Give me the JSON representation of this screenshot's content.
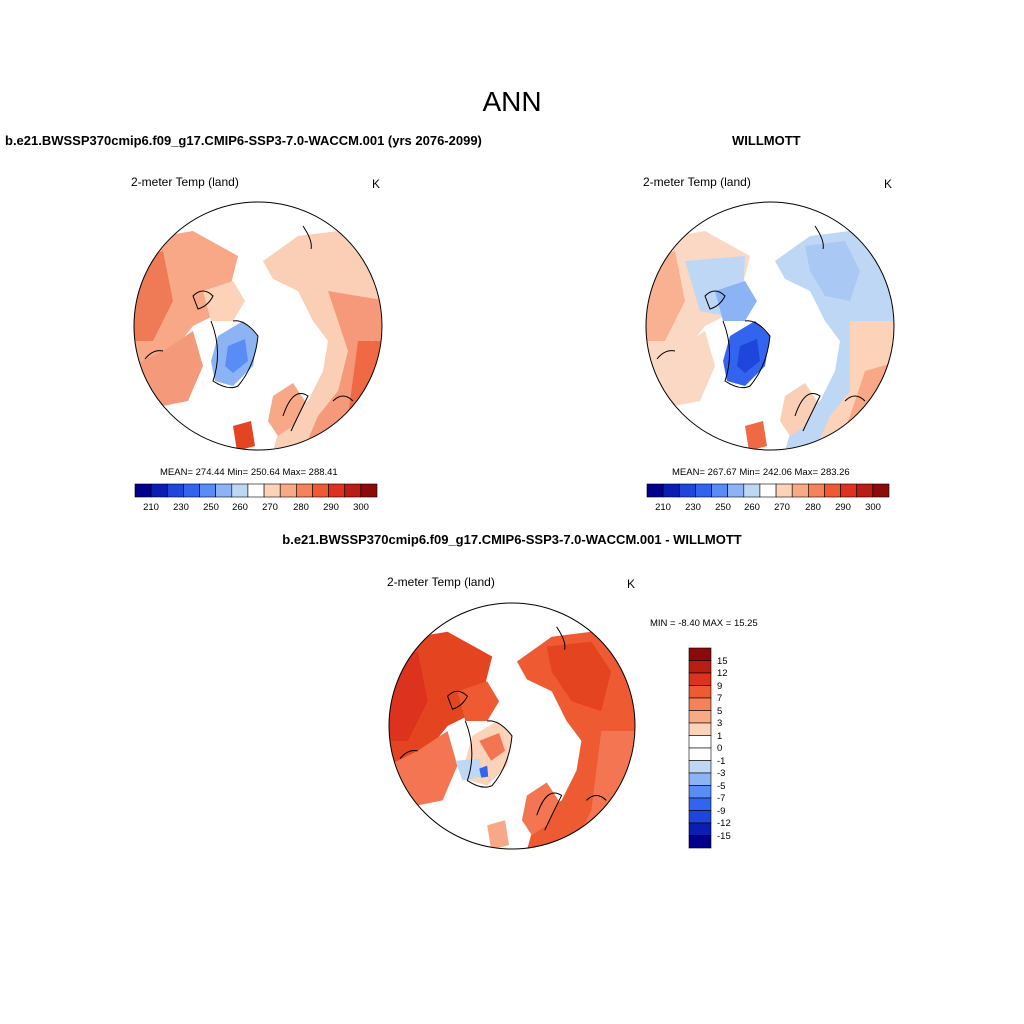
{
  "season": "ANN",
  "panels": [
    {
      "id": "model",
      "header": "b.e21.BWSSP370cmip6.f09_g17.CMIP6-SSP3-7.0-WACCM.001 (yrs 2076-2099)",
      "variable": "2-meter Temp (land)",
      "units": "K",
      "stats": "MEAN= 274.44  Min= 250.64  Max= 288.41",
      "mean": 274.44,
      "min": 250.64,
      "max": 288.41
    },
    {
      "id": "obs",
      "header": "WILLMOTT",
      "variable": "2-meter Temp (land)",
      "units": "K",
      "stats": "MEAN= 267.67  Min= 242.06  Max= 283.26",
      "mean": 267.67,
      "min": 242.06,
      "max": 283.26
    },
    {
      "id": "diff",
      "header": "b.e21.BWSSP370cmip6.f09_g17.CMIP6-SSP3-7.0-WACCM.001 - WILLMOTT",
      "variable": "2-meter Temp (land)",
      "units": "K",
      "stats": "MIN =  -8.40 MAX =  15.25",
      "min": -8.4,
      "max": 15.25
    }
  ],
  "abs_colorbar": {
    "labels": [
      "210",
      "230",
      "250",
      "260",
      "270",
      "280",
      "290",
      "300"
    ],
    "colors": [
      "#00008c",
      "#0a1eb4",
      "#1e46dc",
      "#3264f0",
      "#5a8cf5",
      "#8cb4f5",
      "#bed7f5",
      "#ffffff",
      "#fcd2b9",
      "#f8aa87",
      "#f5825a",
      "#ee5a32",
      "#dc321e",
      "#b91e14",
      "#8c0a0a"
    ]
  },
  "diff_colorbar": {
    "labels": [
      "15",
      "12",
      "9",
      "7",
      "5",
      "3",
      "1",
      "0",
      "-1",
      "-3",
      "-5",
      "-7",
      "-9",
      "-12",
      "-15"
    ],
    "colors": [
      "#8c0a0a",
      "#b91e14",
      "#dc321e",
      "#ee5a32",
      "#f5825a",
      "#f8aa87",
      "#fcd2b9",
      "#ffffff",
      "#ffffff",
      "#bed7f5",
      "#8cb4f5",
      "#5a8cf5",
      "#3264f0",
      "#1e46dc",
      "#0a1eb4",
      "#00008c"
    ]
  }
}
